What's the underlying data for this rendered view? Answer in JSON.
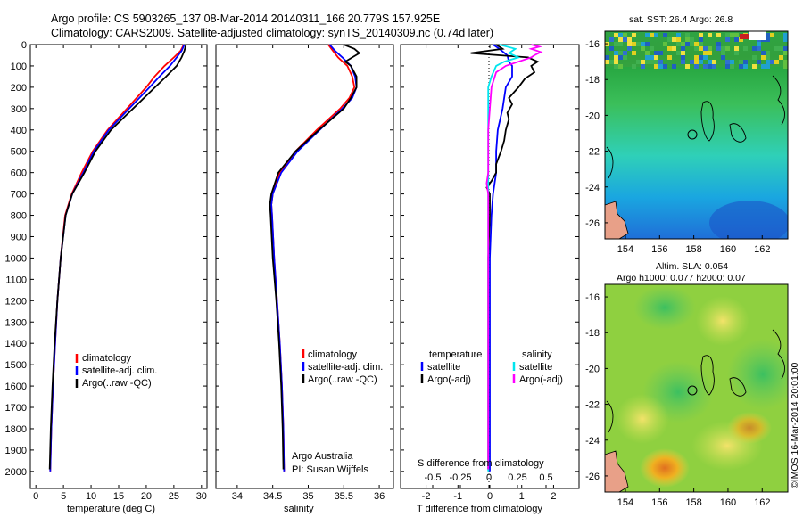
{
  "header": {
    "line1": "Argo profile: CS 5903265_137 08-Mar-2014 20140311_166 20.779S 157.925E",
    "line2": "Climatology: CARS2009. Satellite-adjusted climatology: synTS_20140309.nc (0.74d later)"
  },
  "maps": {
    "sst_title": "sat. SST: 26.4 Argo: 26.8",
    "sla_title1": "Altim. SLA: 0.054",
    "sla_title2": "Argo h1000: 0.077 h2000: 0.07",
    "side_label": "©IMOS 16-Mar-2014 20:01:00",
    "lon_ticks": [
      "154",
      "156",
      "158",
      "160",
      "162"
    ],
    "lat_ticks": [
      "-16",
      "-18",
      "-20",
      "-22",
      "-24",
      "-26"
    ]
  },
  "panel_text": {
    "argo_australia": "Argo Australia",
    "pi": "PI: Susan Wijffels",
    "s_diff_label": "S difference from climatology",
    "t_diff_label": "T difference from climatology",
    "s_diff_ticks": [
      "-0.5",
      "-0.25",
      "0",
      "0.25",
      "0.5"
    ],
    "legend_temperature_header": "temperature",
    "legend_salinity_header": "salinity"
  },
  "legend": {
    "climatology": "climatology",
    "satellite_adj": "satellite-adj. clim.",
    "argo_raw": "Argo(..raw -QC)",
    "satellite": "satellite",
    "argo_adj": "Argo(-adj)"
  },
  "colors": {
    "climatology": "#ff0000",
    "satellite": "#0000ff",
    "argo": "#000000",
    "sal_satellite": "#00e5ee",
    "sal_argo": "#ff00ff"
  },
  "chart_data": [
    {
      "type": "line",
      "xlabel": "temperature (deg C)",
      "ylabel": "",
      "xlim": [
        -1,
        31
      ],
      "ylim": [
        2080,
        0
      ],
      "xticks": [
        0,
        5,
        10,
        15,
        20,
        25,
        30
      ],
      "yticks": [
        0,
        100,
        200,
        300,
        400,
        500,
        600,
        700,
        800,
        900,
        1000,
        1100,
        1200,
        1300,
        1400,
        1500,
        1600,
        1700,
        1800,
        1900,
        2000
      ],
      "series": [
        {
          "name": "climatology",
          "color": "#ff0000",
          "depth": [
            0,
            30,
            60,
            100,
            150,
            200,
            300,
            400,
            500,
            600,
            700,
            800,
            1000,
            1200,
            1400,
            1600,
            1800,
            2000
          ],
          "values": [
            26.8,
            26.2,
            25.0,
            23.3,
            21.5,
            20.0,
            16.5,
            13.0,
            10.3,
            8.3,
            6.5,
            5.3,
            4.5,
            3.9,
            3.5,
            3.1,
            2.8,
            2.6
          ]
        },
        {
          "name": "satellite-adj. clim.",
          "color": "#0000ff",
          "depth": [
            0,
            30,
            60,
            100,
            150,
            200,
            300,
            400,
            500,
            600,
            700,
            800,
            1000,
            1200,
            1400,
            1600,
            1800,
            2000
          ],
          "values": [
            26.9,
            26.4,
            25.5,
            24.3,
            22.4,
            20.6,
            16.9,
            13.2,
            10.5,
            8.6,
            6.6,
            5.4,
            4.5,
            3.9,
            3.5,
            3.1,
            2.8,
            2.6
          ]
        },
        {
          "name": "Argo(..raw -QC)",
          "color": "#000000",
          "depth": [
            0,
            30,
            60,
            100,
            150,
            200,
            300,
            400,
            500,
            600,
            700,
            800,
            1000,
            1200,
            1400,
            1600,
            1800,
            1990
          ],
          "values": [
            27.2,
            26.9,
            26.4,
            25.5,
            23.6,
            21.6,
            17.6,
            13.6,
            10.8,
            8.8,
            6.6,
            5.4,
            4.5,
            3.9,
            3.4,
            3.0,
            2.7,
            2.5
          ]
        }
      ]
    },
    {
      "type": "line",
      "xlabel": "salinity",
      "ylabel": "",
      "xlim": [
        33.7,
        36.2
      ],
      "ylim": [
        2080,
        0
      ],
      "xticks": [
        34,
        34.5,
        35,
        35.5,
        36
      ],
      "series": [
        {
          "name": "climatology",
          "color": "#ff0000",
          "depth": [
            0,
            30,
            60,
            100,
            150,
            200,
            250,
            300,
            400,
            500,
            600,
            700,
            750,
            800,
            1000,
            1200,
            1400,
            1600,
            1800,
            2000
          ],
          "values": [
            35.28,
            35.35,
            35.42,
            35.55,
            35.62,
            35.65,
            35.58,
            35.45,
            35.12,
            34.82,
            34.6,
            34.5,
            34.48,
            34.49,
            34.52,
            34.56,
            34.6,
            34.63,
            34.65,
            34.66
          ]
        },
        {
          "name": "satellite-adj. clim.",
          "color": "#0000ff",
          "depth": [
            0,
            30,
            60,
            100,
            150,
            200,
            250,
            300,
            400,
            500,
            600,
            700,
            750,
            800,
            1000,
            1200,
            1400,
            1600,
            1800,
            2000
          ],
          "values": [
            35.3,
            35.38,
            35.48,
            35.6,
            35.66,
            35.68,
            35.62,
            35.48,
            35.16,
            34.85,
            34.62,
            34.5,
            34.48,
            34.49,
            34.52,
            34.56,
            34.6,
            34.63,
            34.65,
            34.66
          ]
        },
        {
          "name": "Argo(..raw -QC)",
          "color": "#000000",
          "depth": [
            0,
            20,
            40,
            60,
            80,
            100,
            150,
            200,
            250,
            300,
            400,
            500,
            600,
            700,
            750,
            800,
            1000,
            1200,
            1400,
            1600,
            1800,
            1990
          ],
          "values": [
            35.5,
            35.65,
            35.72,
            35.62,
            35.52,
            35.6,
            35.68,
            35.68,
            35.6,
            35.5,
            35.15,
            34.82,
            34.58,
            34.48,
            34.46,
            34.47,
            34.5,
            34.55,
            34.59,
            34.62,
            34.64,
            34.65
          ]
        }
      ]
    },
    {
      "type": "line",
      "xlabel": "T difference from climatology",
      "ylabel": "",
      "xlim": [
        -2.8,
        2.8
      ],
      "ylim": [
        2080,
        0
      ],
      "xticks": [
        -2,
        -1,
        0,
        1,
        2
      ],
      "series": [
        {
          "name": "temperature satellite",
          "color": "#0000ff",
          "depth": [
            0,
            20,
            50,
            80,
            100,
            150,
            200,
            250,
            300,
            400,
            500,
            600,
            700,
            800,
            1000,
            1500,
            2000
          ],
          "values": [
            0.1,
            0.3,
            0.55,
            0.6,
            0.7,
            0.7,
            0.5,
            0.45,
            0.4,
            0.25,
            0.2,
            0.2,
            0.1,
            0.05,
            0.0,
            0.0,
            0.0
          ]
        },
        {
          "name": "temperature Argo(-adj)",
          "color": "#000000",
          "depth": [
            0,
            20,
            40,
            60,
            80,
            100,
            130,
            160,
            200,
            250,
            280,
            320,
            350,
            400,
            450,
            500,
            560,
            600,
            640,
            670,
            700,
            800,
            1000,
            1500,
            1990
          ],
          "values": [
            0.2,
            0.4,
            -0.6,
            1.2,
            1.5,
            1.3,
            1.4,
            1.1,
            0.9,
            0.6,
            0.7,
            0.55,
            0.6,
            0.5,
            0.45,
            0.35,
            0.2,
            0.2,
            0.05,
            -0.1,
            0.0,
            0.0,
            -0.05,
            -0.05,
            -0.05
          ]
        },
        {
          "name": "salinity satellite",
          "color": "#00e5ee",
          "depth": [
            0,
            20,
            40,
            60,
            80,
            100,
            150,
            200,
            300,
            500,
            700,
            1000,
            2000
          ],
          "values": [
            0.3,
            0.8,
            0.6,
            0.9,
            0.45,
            0.2,
            0.05,
            -0.05,
            -0.05,
            -0.05,
            -0.05,
            -0.05,
            -0.05
          ]
        },
        {
          "name": "salinity Argo(-adj)",
          "color": "#ff00ff",
          "depth": [
            0,
            10,
            20,
            35,
            50,
            60,
            80,
            100,
            130,
            200,
            300,
            400,
            500,
            600,
            650,
            700,
            800,
            1000,
            1500,
            1990
          ],
          "values": [
            1.3,
            1.55,
            1.3,
            1.6,
            1.4,
            1.3,
            0.9,
            0.5,
            0.2,
            0.05,
            0.0,
            -0.05,
            -0.05,
            -0.05,
            -0.1,
            -0.05,
            -0.05,
            -0.05,
            -0.05,
            -0.05
          ]
        }
      ]
    },
    {
      "type": "heatmap",
      "title": "sat. SST: 26.4 Argo: 26.8",
      "xlim": [
        152.8,
        163.5
      ],
      "ylim": [
        -26.9,
        -15.3
      ]
    },
    {
      "type": "heatmap",
      "title": "Altim. SLA: 0.054",
      "xlim": [
        152.8,
        163.5
      ],
      "ylim": [
        -26.9,
        -15.3
      ]
    }
  ]
}
